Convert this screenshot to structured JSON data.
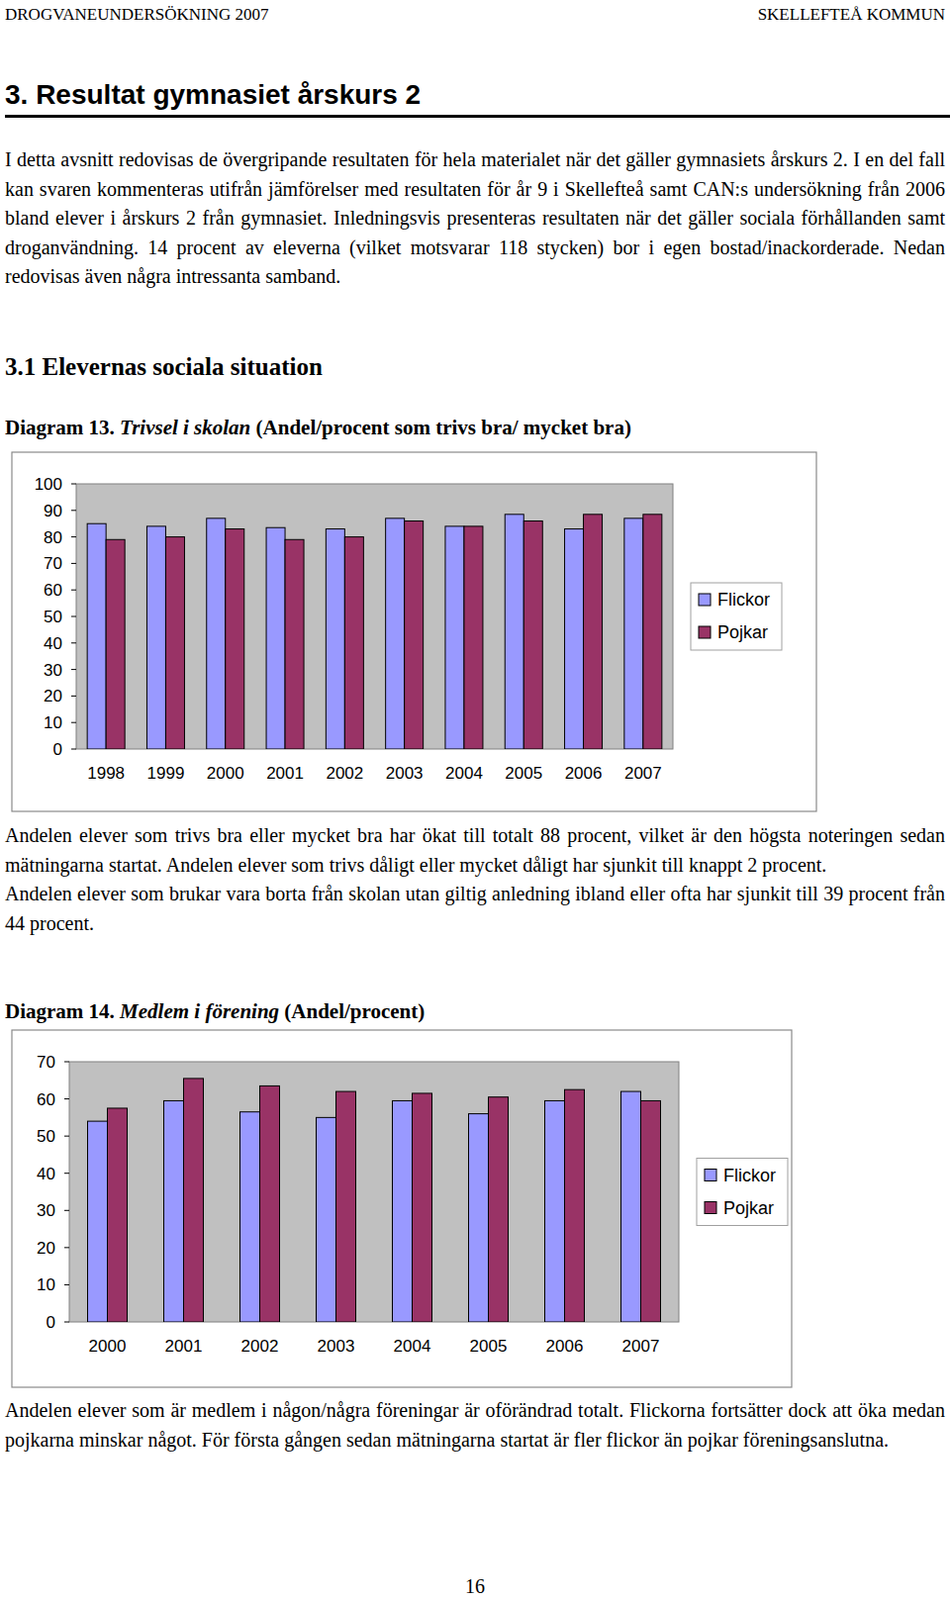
{
  "header": {
    "left": "DROGVANEUNDERSÖKNING 2007",
    "right": "SKELLEFTEÅ KOMMUN"
  },
  "heading": "3. Resultat gymnasiet årskurs 2",
  "intro": [
    "I detta avsnitt redovisas de övergripande resultaten för hela materialet när det gäller gymnasiets årskurs 2. I en del fall kan svaren kommenteras utifrån jämförelser med resultaten för år 9 i Skellefteå samt CAN:s undersökning från 2006 bland elever i årskurs 2 från gymnasiet. Inledningsvis presenteras resultaten när det gäller sociala förhållanden samt droganvändning. 14 procent av eleverna (vilket motsvarar 118 stycken) bor i egen bostad/inackorderade. Nedan redovisas även några intressanta samband."
  ],
  "section": "3.1 Elevernas sociala situation",
  "figures": [
    {
      "number": "Diagram 13.",
      "name": "Trivsel i skolan",
      "unit": "(Andel/procent som trivs bra/ mycket bra)"
    },
    {
      "number": "Diagram 14.",
      "name": "Medlem i förening",
      "unit": "(Andel/procent)"
    }
  ],
  "chart_data": [
    {
      "type": "bar",
      "categories": [
        "1998",
        "1999",
        "2000",
        "2001",
        "2002",
        "2003",
        "2004",
        "2005",
        "2006",
        "2007"
      ],
      "series": [
        {
          "name": "Flickor",
          "color": "#9999ff",
          "values": [
            85,
            84,
            87,
            83.5,
            83,
            87,
            84,
            88.5,
            83,
            87
          ]
        },
        {
          "name": "Pojkar",
          "color": "#993366",
          "values": [
            79,
            80,
            83,
            79,
            80,
            86,
            84,
            86,
            88.5,
            88.5
          ]
        }
      ],
      "ylim": [
        0,
        100
      ],
      "yticks": [
        0,
        10,
        20,
        30,
        40,
        50,
        60,
        70,
        80,
        90,
        100
      ],
      "grid": false,
      "legend": "right"
    },
    {
      "type": "bar",
      "categories": [
        "2000",
        "2001",
        "2002",
        "2003",
        "2004",
        "2005",
        "2006",
        "2007"
      ],
      "series": [
        {
          "name": "Flickor",
          "color": "#9999ff",
          "values": [
            54,
            59.5,
            56.5,
            55,
            59.5,
            56,
            59.5,
            62
          ]
        },
        {
          "name": "Pojkar",
          "color": "#993366",
          "values": [
            57.5,
            65.5,
            63.5,
            62,
            61.5,
            60.5,
            62.5,
            59.5
          ]
        }
      ],
      "ylim": [
        0,
        70
      ],
      "yticks": [
        0,
        10,
        20,
        30,
        40,
        50,
        60,
        70
      ],
      "grid": false,
      "legend": "right"
    }
  ],
  "comments": [
    [
      "Andelen elever som trivs bra eller mycket bra har ökat till totalt 88 procent, vilket är den högsta noteringen sedan mätningarna startat. Andelen elever som trivs dåligt eller mycket dåligt har sjunkit till knappt 2 procent.",
      "Andelen elever som brukar vara borta från skolan utan giltig anledning ibland eller ofta har sjunkit till 39 procent från 44 procent."
    ],
    [
      "Andelen elever som är medlem i någon/några föreningar är oförändrad totalt. Flickorna fortsätter dock att öka medan pojkarna minskar något. För första gången sedan mätningarna startat är fler flickor än pojkar föreningsanslutna."
    ]
  ],
  "page_number": 16
}
